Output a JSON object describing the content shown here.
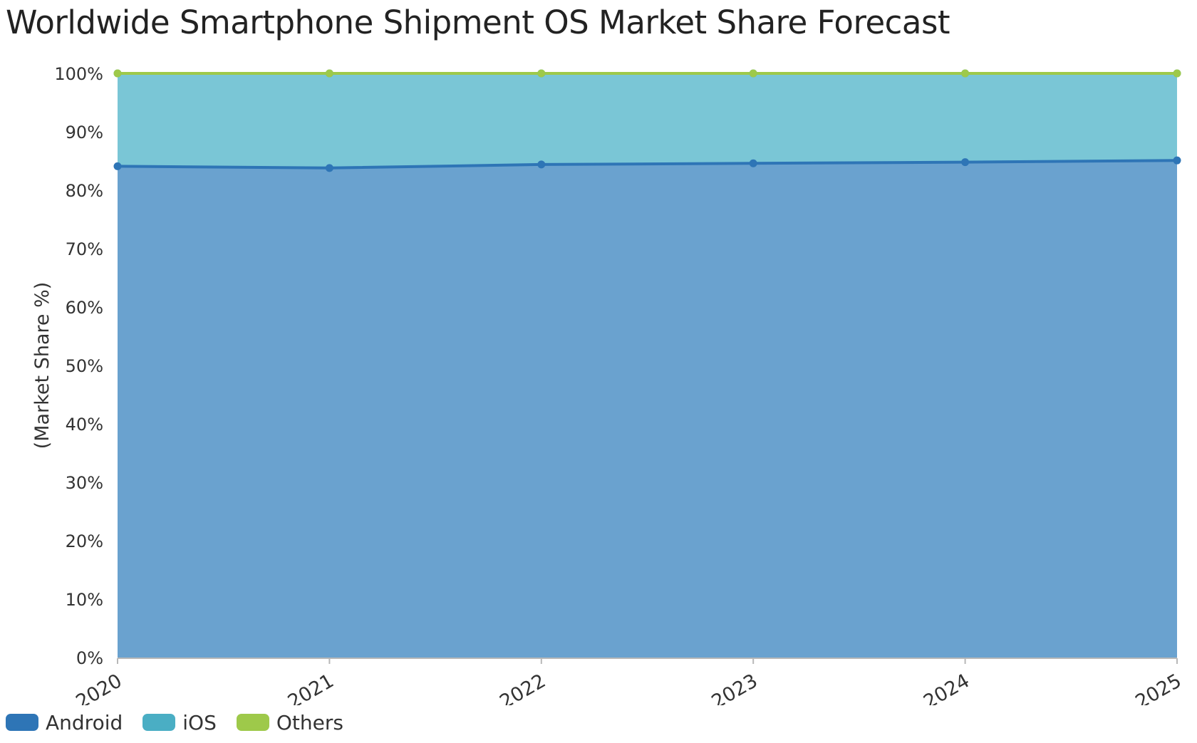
{
  "chart_data": {
    "type": "area",
    "stacked": true,
    "title": "Worldwide Smartphone Shipment OS Market Share Forecast",
    "ylabel": "(Market Share %)",
    "xlabel": "",
    "x": [
      "2020",
      "2021",
      "2022",
      "2023",
      "2024",
      "2025"
    ],
    "ylim": [
      0,
      100
    ],
    "yticks": [
      "0%",
      "10%",
      "20%",
      "30%",
      "40%",
      "50%",
      "60%",
      "70%",
      "80%",
      "90%",
      "100%"
    ],
    "grid": false,
    "legend_position": "bottom-left",
    "series": [
      {
        "name": "Android",
        "values": [
          84.1,
          83.8,
          84.4,
          84.6,
          84.8,
          85.1
        ],
        "line_color": "#2e75b6",
        "fill_color": "#6aa2cf"
      },
      {
        "name": "iOS",
        "values": [
          15.9,
          16.2,
          15.6,
          15.4,
          15.2,
          14.9
        ],
        "line_color": "#4aaec4",
        "fill_color": "#7ac6d6"
      },
      {
        "name": "Others",
        "values": [
          0.0,
          0.0,
          0.0,
          0.0,
          0.0,
          0.0
        ],
        "line_color": "#9ec94a",
        "fill_color": "#9ec94a"
      }
    ]
  },
  "legend": {
    "items": [
      {
        "label": "Android",
        "color": "#2e75b6"
      },
      {
        "label": "iOS",
        "color": "#4aaec4"
      },
      {
        "label": "Others",
        "color": "#9ec94a"
      }
    ]
  }
}
